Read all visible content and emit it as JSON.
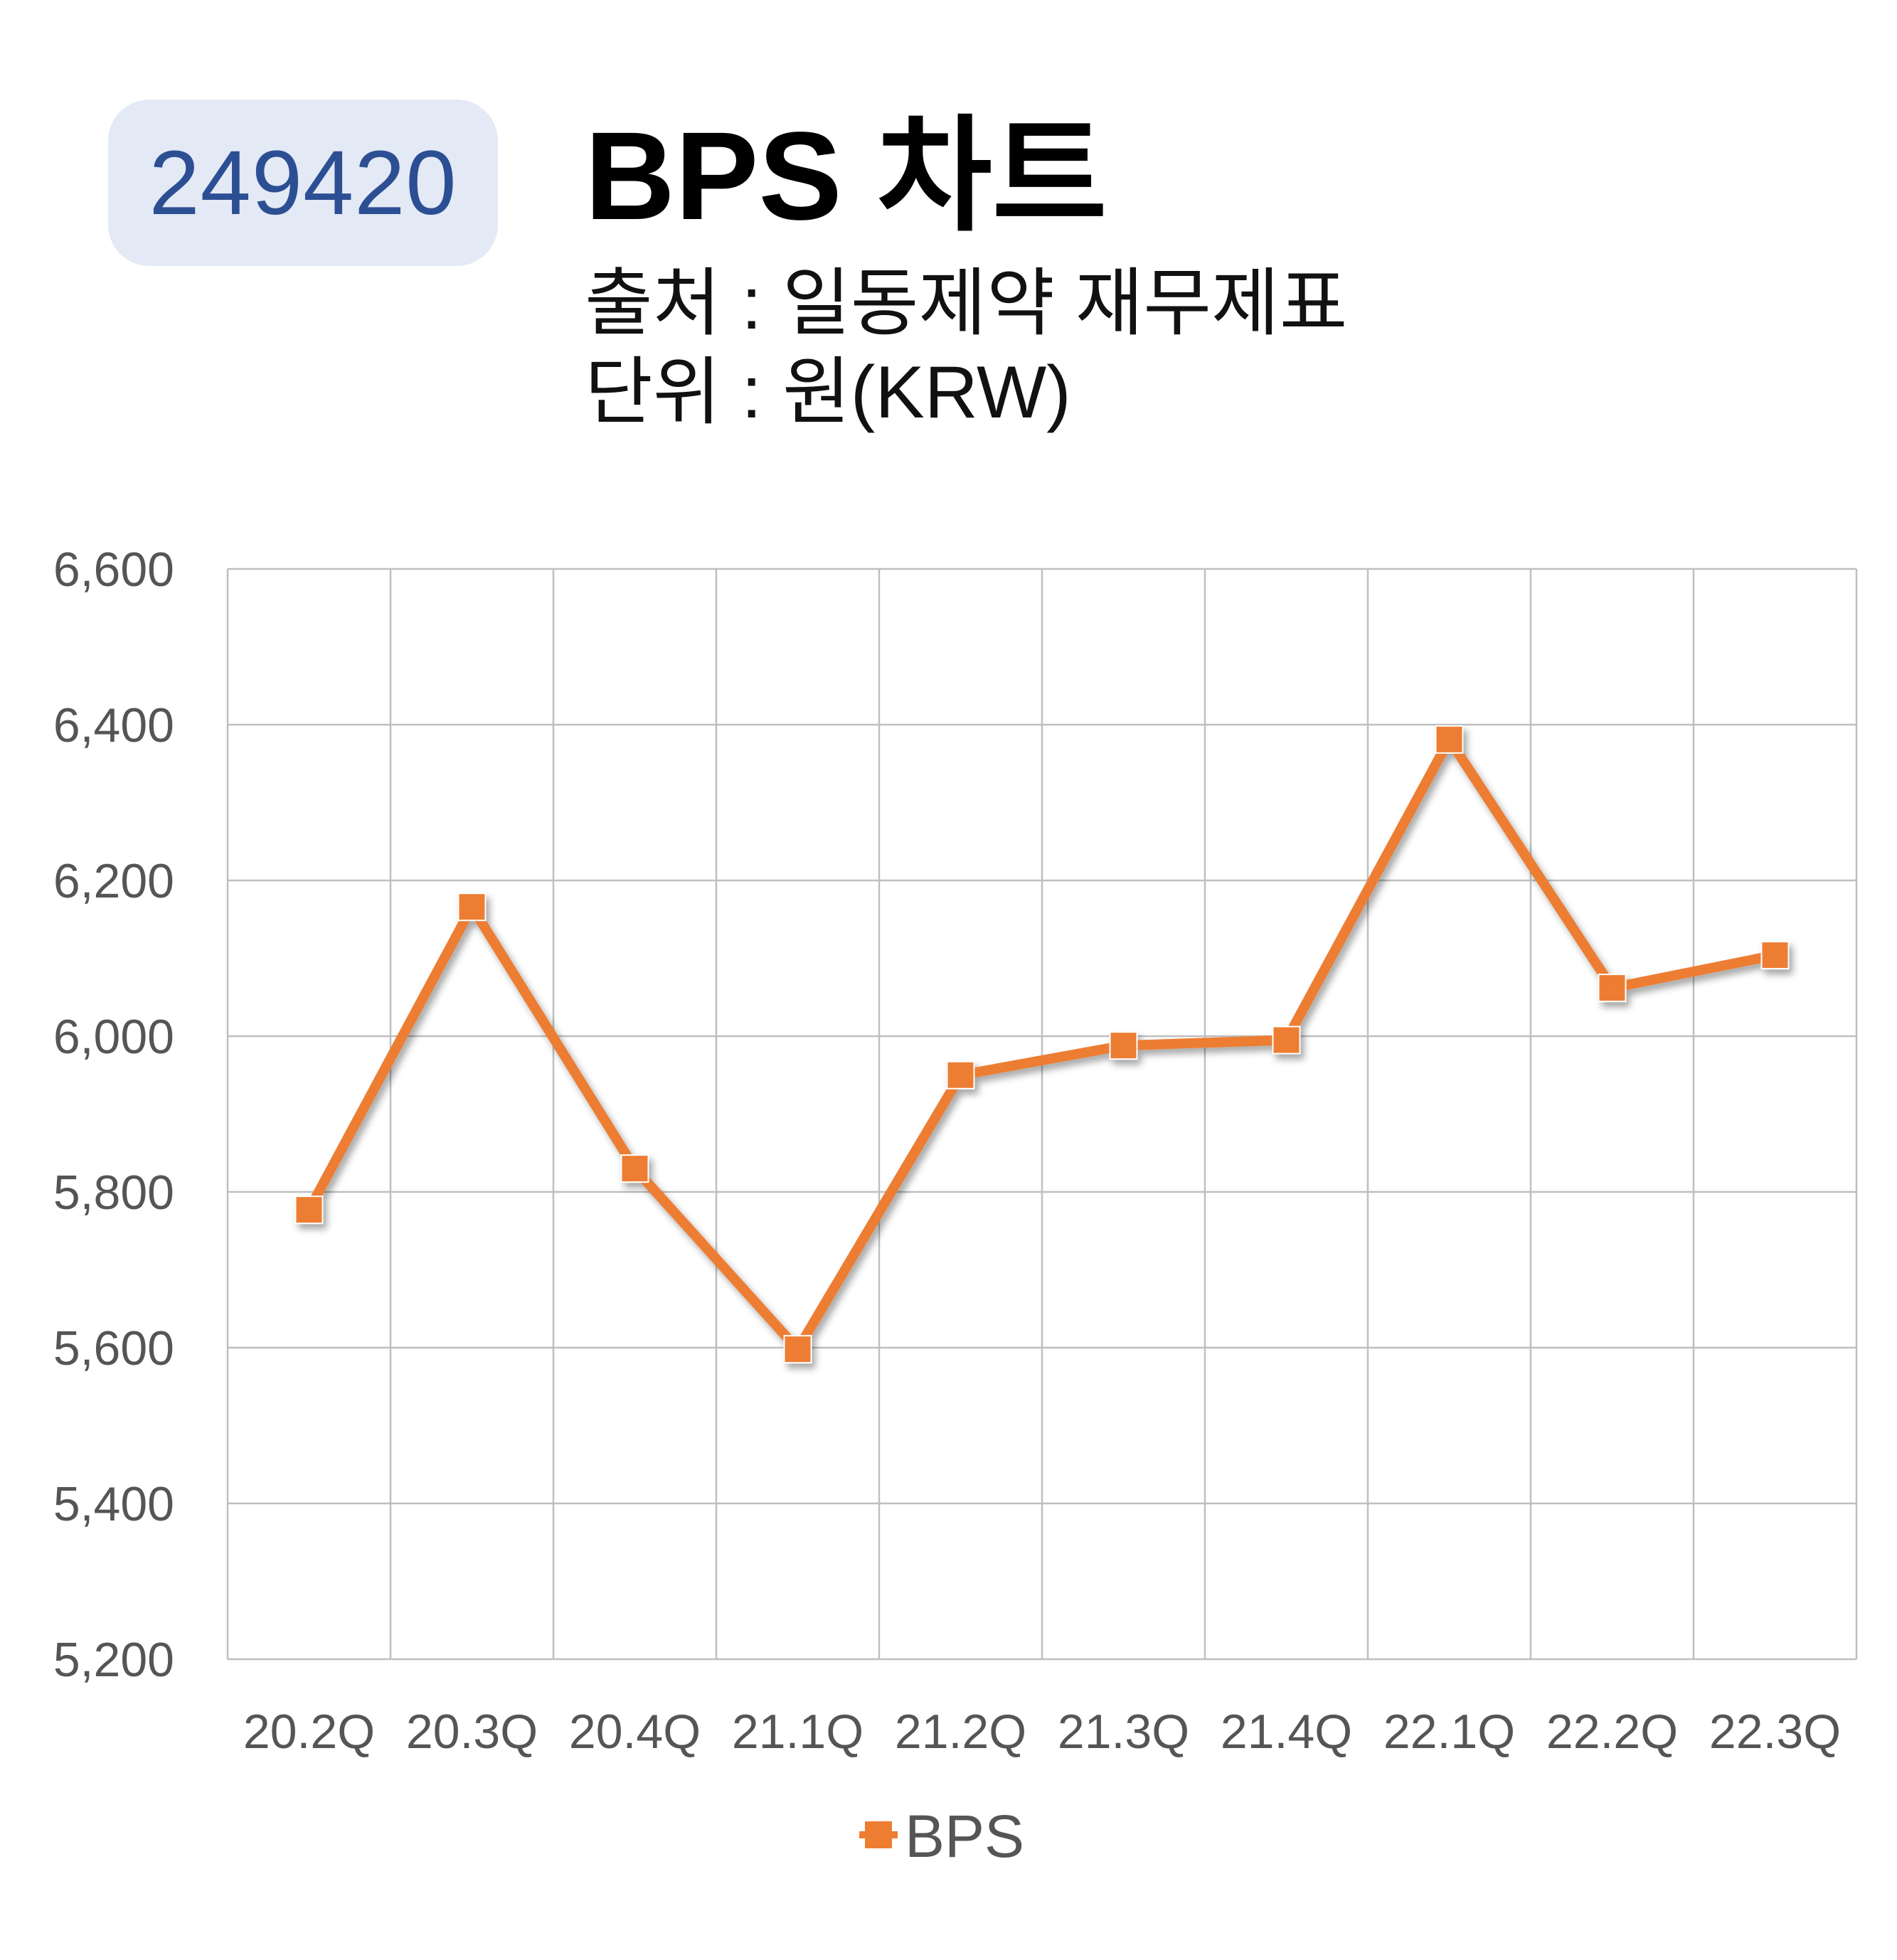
{
  "badge": {
    "code": "249420"
  },
  "header": {
    "title": "BPS 차트",
    "source": "출처 : 일동제약 재무제표",
    "unit": "단위 : 원(KRW)"
  },
  "colors": {
    "line": "#ed7d31",
    "badge_bg": "#e3e9f5",
    "badge_text": "#2c4f93",
    "grid": "#bfbfbf"
  },
  "chart_data": {
    "type": "line",
    "categories": [
      "20.2Q",
      "20.3Q",
      "20.4Q",
      "21.1Q",
      "21.2Q",
      "21.3Q",
      "21.4Q",
      "22.1Q",
      "22.2Q",
      "22.3Q"
    ],
    "y_tick_labels": [
      "6,600",
      "6,400",
      "6,200",
      "6,000",
      "5,800",
      "5,600",
      "5,400",
      "5,200"
    ],
    "series": [
      {
        "name": "BPS",
        "values": [
          5777,
          6166,
          5830,
          5598,
          5950,
          5988,
          5995,
          6381,
          6062,
          6104
        ]
      }
    ],
    "ylim": [
      5200,
      6600
    ],
    "ystep": 200,
    "grid": true,
    "legend": "bottom",
    "marker": "square"
  }
}
